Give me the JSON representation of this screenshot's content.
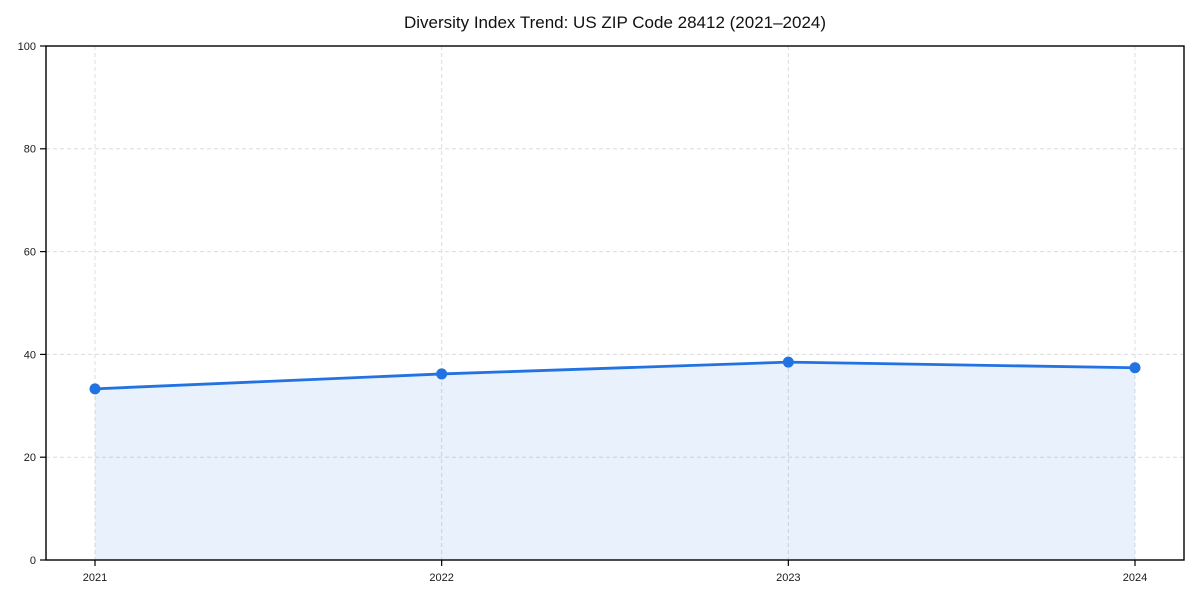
{
  "chart_data": {
    "type": "area",
    "title": "Diversity Index Trend: US ZIP Code 28412 (2021–2024)",
    "x": [
      "2021",
      "2022",
      "2023",
      "2024"
    ],
    "series": [
      {
        "name": "Diversity Index",
        "values": [
          33.3,
          36.2,
          38.5,
          37.4
        ]
      }
    ],
    "xlabel": "",
    "ylabel": "",
    "ylim": [
      0,
      100
    ],
    "yticks": [
      0,
      20,
      40,
      60,
      80,
      100
    ],
    "grid": "dashed-both-axes",
    "legend": "none",
    "colors": {
      "line": "#2272e2",
      "fill": "rgba(34,114,226,0.10)",
      "marker": "#2272e2",
      "grid": "#dcdcdc",
      "axis": "#000000",
      "title_text": "#111111",
      "tick_text": "#1a1a1a",
      "background": "#ffffff"
    }
  }
}
